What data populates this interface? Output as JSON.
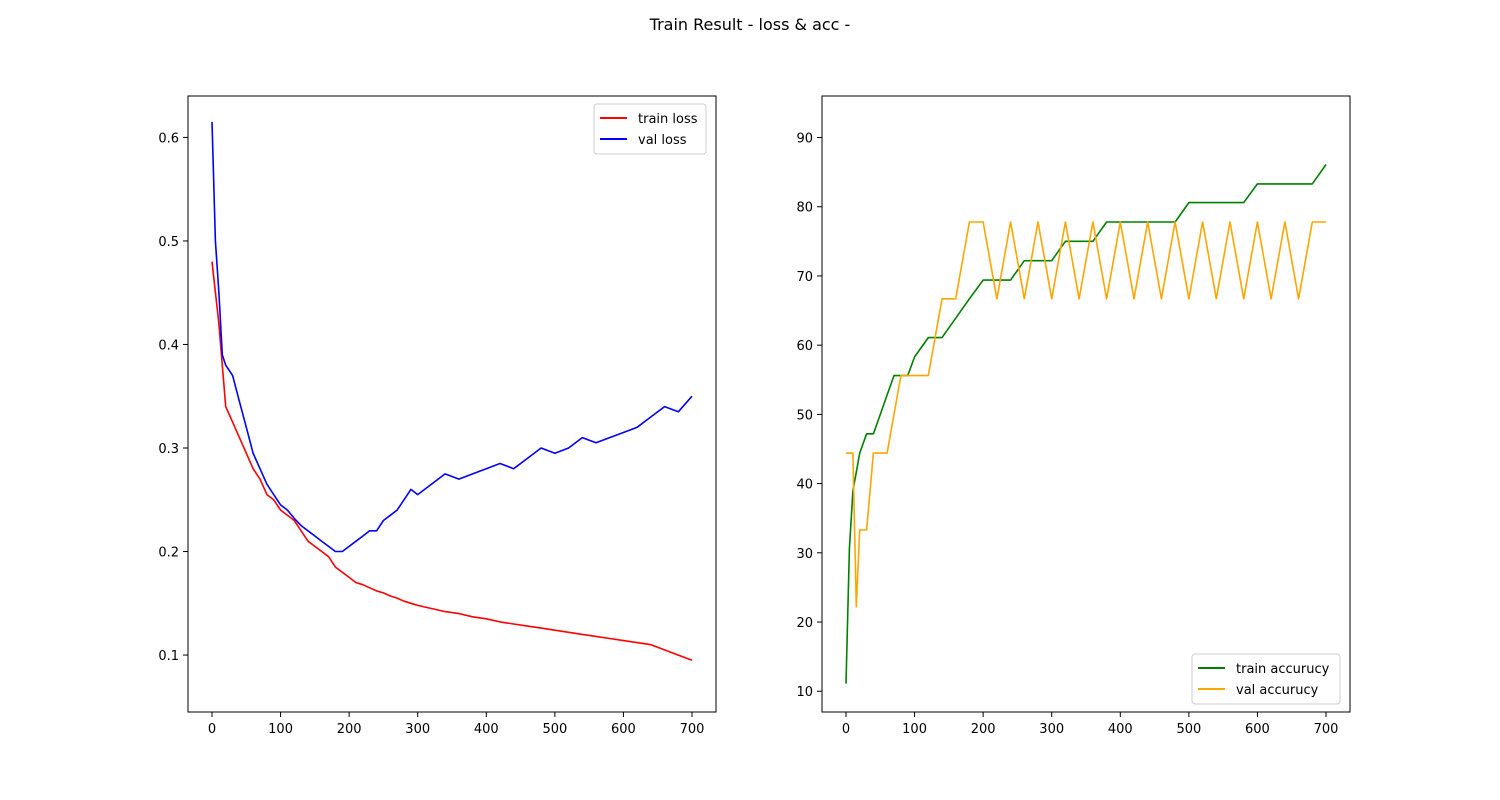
{
  "figure": {
    "title": "Train Result - loss & acc -"
  },
  "chart_data": [
    {
      "type": "line",
      "title": "",
      "xlabel": "",
      "ylabel": "",
      "xlim": [
        -35,
        735
      ],
      "ylim": [
        0.045,
        0.64
      ],
      "xticks": [
        0,
        100,
        200,
        300,
        400,
        500,
        600,
        700
      ],
      "yticks": [
        0.1,
        0.2,
        0.3,
        0.4,
        0.5,
        0.6
      ],
      "legend": "top-right",
      "grid": false,
      "series": [
        {
          "name": "train loss",
          "color": "#ff0000",
          "x": [
            0,
            10,
            20,
            30,
            40,
            50,
            60,
            70,
            80,
            90,
            100,
            110,
            120,
            130,
            140,
            150,
            160,
            170,
            180,
            190,
            200,
            210,
            220,
            230,
            240,
            250,
            260,
            270,
            280,
            290,
            300,
            320,
            340,
            360,
            380,
            400,
            420,
            440,
            460,
            480,
            500,
            520,
            540,
            560,
            580,
            600,
            620,
            640,
            660,
            680,
            700
          ],
          "y": [
            0.48,
            0.42,
            0.34,
            0.325,
            0.31,
            0.295,
            0.28,
            0.27,
            0.255,
            0.25,
            0.24,
            0.235,
            0.23,
            0.22,
            0.21,
            0.205,
            0.2,
            0.195,
            0.185,
            0.18,
            0.175,
            0.17,
            0.168,
            0.165,
            0.162,
            0.16,
            0.157,
            0.155,
            0.152,
            0.15,
            0.148,
            0.145,
            0.142,
            0.14,
            0.137,
            0.135,
            0.132,
            0.13,
            0.128,
            0.126,
            0.124,
            0.122,
            0.12,
            0.118,
            0.116,
            0.114,
            0.112,
            0.11,
            0.105,
            0.1,
            0.095
          ]
        },
        {
          "name": "val loss",
          "color": "#0000ff",
          "x": [
            0,
            5,
            10,
            15,
            20,
            30,
            40,
            50,
            60,
            70,
            80,
            90,
            100,
            110,
            120,
            130,
            140,
            150,
            160,
            170,
            180,
            190,
            200,
            210,
            220,
            230,
            240,
            250,
            260,
            270,
            280,
            290,
            300,
            320,
            340,
            360,
            380,
            400,
            420,
            440,
            460,
            480,
            500,
            520,
            540,
            560,
            580,
            600,
            620,
            640,
            660,
            680,
            700
          ],
          "y": [
            0.615,
            0.5,
            0.45,
            0.39,
            0.38,
            0.37,
            0.345,
            0.32,
            0.295,
            0.28,
            0.265,
            0.255,
            0.245,
            0.24,
            0.232,
            0.225,
            0.22,
            0.215,
            0.21,
            0.205,
            0.2,
            0.2,
            0.205,
            0.21,
            0.215,
            0.22,
            0.22,
            0.23,
            0.235,
            0.24,
            0.25,
            0.26,
            0.255,
            0.265,
            0.275,
            0.27,
            0.275,
            0.28,
            0.285,
            0.28,
            0.29,
            0.3,
            0.295,
            0.3,
            0.31,
            0.305,
            0.31,
            0.315,
            0.32,
            0.33,
            0.34,
            0.335,
            0.35
          ]
        }
      ]
    },
    {
      "type": "line",
      "title": "",
      "xlabel": "",
      "ylabel": "",
      "xlim": [
        -35,
        735
      ],
      "ylim": [
        7,
        96
      ],
      "xticks": [
        0,
        100,
        200,
        300,
        400,
        500,
        600,
        700
      ],
      "yticks": [
        10,
        20,
        30,
        40,
        50,
        60,
        70,
        80,
        90
      ],
      "legend": "bottom-right",
      "grid": false,
      "series": [
        {
          "name": "train accurucy",
          "color": "#008000",
          "x": [
            0,
            5,
            10,
            20,
            30,
            40,
            50,
            60,
            70,
            80,
            90,
            100,
            120,
            140,
            160,
            180,
            200,
            220,
            240,
            260,
            280,
            300,
            320,
            340,
            360,
            380,
            400,
            420,
            440,
            460,
            480,
            500,
            520,
            540,
            560,
            580,
            600,
            620,
            640,
            660,
            680,
            700
          ],
          "y": [
            11.1,
            30.6,
            38.9,
            44.4,
            47.2,
            47.2,
            50,
            52.8,
            55.6,
            55.6,
            55.6,
            58.3,
            61.1,
            61.1,
            63.9,
            66.7,
            69.4,
            69.4,
            69.4,
            72.2,
            72.2,
            72.2,
            75,
            75,
            75,
            77.8,
            77.8,
            77.8,
            77.8,
            77.8,
            77.8,
            80.6,
            80.6,
            80.6,
            80.6,
            80.6,
            83.3,
            83.3,
            83.3,
            83.3,
            83.3,
            86.1
          ]
        },
        {
          "name": "val accurucy",
          "color": "#ffa500",
          "x": [
            0,
            10,
            15,
            20,
            30,
            40,
            50,
            60,
            80,
            100,
            120,
            140,
            160,
            180,
            200,
            220,
            240,
            260,
            280,
            300,
            320,
            340,
            360,
            380,
            400,
            420,
            440,
            460,
            480,
            500,
            520,
            540,
            560,
            580,
            600,
            620,
            640,
            660,
            680,
            700
          ],
          "y": [
            44.4,
            44.4,
            22.2,
            33.3,
            33.3,
            44.4,
            44.4,
            44.4,
            55.6,
            55.6,
            55.6,
            66.7,
            66.7,
            77.8,
            77.8,
            66.7,
            77.8,
            66.7,
            77.8,
            66.7,
            77.8,
            66.7,
            77.8,
            66.7,
            77.8,
            66.7,
            77.8,
            66.7,
            77.8,
            66.7,
            77.8,
            66.7,
            77.8,
            66.7,
            77.8,
            66.7,
            77.8,
            66.7,
            77.8,
            77.8
          ]
        }
      ]
    }
  ]
}
